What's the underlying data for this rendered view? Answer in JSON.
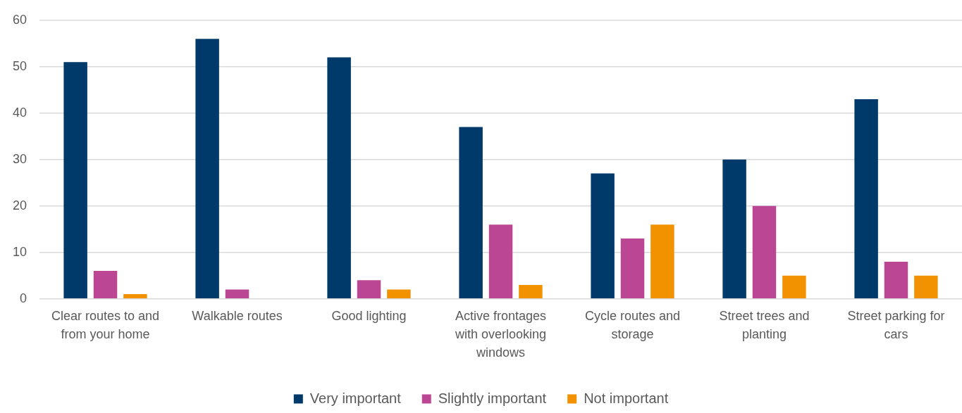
{
  "chart_data": {
    "type": "bar",
    "categories": [
      "Clear routes to and from your home",
      "Walkable routes",
      "Good lighting",
      "Active frontages with overlooking windows",
      "Cycle routes and storage",
      "Street trees and planting",
      "Street parking for cars"
    ],
    "series": [
      {
        "name": "Very important",
        "color": "#003a6a",
        "values": [
          51,
          56,
          52,
          37,
          27,
          30,
          43
        ]
      },
      {
        "name": "Slightly important",
        "color": "#bb4794",
        "values": [
          6,
          2,
          4,
          16,
          13,
          20,
          8
        ]
      },
      {
        "name": "Not important",
        "color": "#f39200",
        "values": [
          1,
          0,
          2,
          3,
          16,
          5,
          5
        ]
      }
    ],
    "ylim": [
      0,
      60
    ],
    "yticks": [
      0,
      10,
      20,
      30,
      40,
      50,
      60
    ],
    "grid": "y",
    "legend": "bottom"
  }
}
